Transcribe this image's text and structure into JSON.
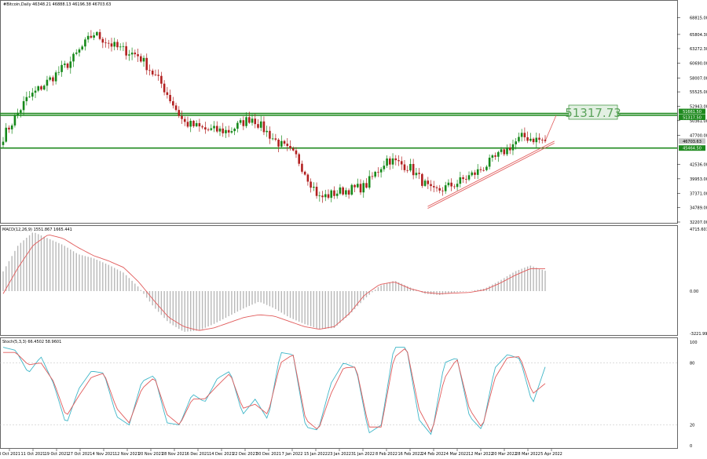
{
  "chart_data": {
    "type": "candlestick",
    "symbol_header": "#Bitcoin,Daily  46348.21 46888.13 46196.38 46703.63",
    "price_axis": {
      "range": [
        32207.0,
        70570.0
      ],
      "ticks": [
        "68815.00",
        "65804.30",
        "63272.30",
        "60690.00",
        "58007.00",
        "55525.00",
        "52943.00",
        "50361.00",
        "47700.00",
        "42536.00",
        "39953.00",
        "37371.00",
        "34789.00",
        "32207.00"
      ]
    },
    "price_badges": [
      "51661.50",
      "51317.50",
      "46703.63",
      "45464.50"
    ],
    "levels": [
      51661.5,
      51317.5,
      45464.5
    ],
    "target_label": "51317.73",
    "trendline": {
      "from": {
        "x": "22 Feb 2022",
        "y": 35000
      },
      "to": {
        "x": "6 Apr 2022",
        "y": 46700
      }
    },
    "dates": [
      "3 Oct 2021",
      "11 Oct 2021",
      "19 Oct 2021",
      "27 Oct 2021",
      "4 Nov 2021",
      "12 Nov 2021",
      "20 Nov 2021",
      "28 Nov 2021",
      "6 Dec 2021",
      "14 Dec 2021",
      "22 Dec 2021",
      "30 Dec 2021",
      "7 Jan 2022",
      "15 Jan 2022",
      "23 Jan 2022",
      "31 Jan 2022",
      "8 Feb 2022",
      "16 Feb 2022",
      "24 Feb 2022",
      "4 Mar 2022",
      "12 Mar 2022",
      "20 Mar 2022",
      "28 Mar 2022",
      "5 Apr 2022"
    ],
    "close_anchors": [
      47500,
      54000,
      57500,
      61000,
      66000,
      63500,
      62000,
      57000,
      50000,
      48700,
      48500,
      51000,
      47000,
      43800,
      36500,
      37800,
      38500,
      43500,
      42000,
      37500,
      39000,
      41200,
      44300,
      47500,
      46703
    ],
    "macd": {
      "header": "MACD(12,26,9) 1551.867 1665.441",
      "ticks": [
        "4715.601",
        "0.00",
        "-3221.997"
      ],
      "range": [
        -3221.997,
        4715.601
      ],
      "hist_anchors": [
        1500,
        3500,
        4500,
        4000,
        3500,
        2800,
        2500,
        2000,
        1400,
        300,
        -1200,
        -2400,
        -3100,
        -3000,
        -2500,
        -1900,
        -1300,
        -800,
        -1300,
        -2000,
        -2500,
        -2900,
        -2800,
        -1800,
        -600,
        400,
        800,
        300,
        -200,
        -300,
        -100,
        0,
        200,
        800,
        1500,
        1950,
        1550
      ],
      "signal_anchors": [
        -200,
        1800,
        3500,
        4300,
        4000,
        3300,
        2700,
        2300,
        1800,
        700,
        -700,
        -2000,
        -2700,
        -3000,
        -2800,
        -2400,
        -2000,
        -1800,
        -1900,
        -2300,
        -2700,
        -2900,
        -2700,
        -1700,
        -300,
        500,
        700,
        200,
        -100,
        -200,
        -150,
        -100,
        100,
        600,
        1200,
        1700,
        1700
      ]
    },
    "stochastic": {
      "header": "Stoch(5,3,3) 66.4502 58.9601",
      "ticks": [
        "100",
        "80",
        "20",
        "0"
      ],
      "range": [
        0,
        100
      ],
      "k_anchors": [
        95,
        92,
        70,
        86,
        60,
        20,
        55,
        72,
        70,
        28,
        20,
        62,
        68,
        22,
        20,
        50,
        42,
        65,
        72,
        30,
        45,
        25,
        90,
        88,
        18,
        15,
        60,
        80,
        75,
        12,
        20,
        95,
        95,
        25,
        10,
        80,
        85,
        28,
        15,
        75,
        88,
        84,
        40,
        76
      ],
      "d_anchors": [
        90,
        90,
        78,
        80,
        62,
        28,
        48,
        66,
        70,
        36,
        22,
        55,
        66,
        30,
        20,
        45,
        45,
        58,
        70,
        36,
        40,
        30,
        80,
        88,
        25,
        15,
        50,
        75,
        76,
        18,
        18,
        85,
        95,
        35,
        12,
        65,
        84,
        35,
        17,
        65,
        85,
        86,
        50,
        60
      ]
    }
  }
}
